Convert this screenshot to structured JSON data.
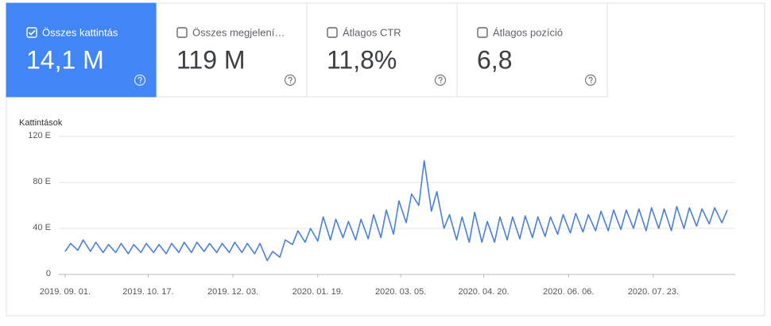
{
  "cards": [
    {
      "label": "Összes kattintás",
      "value": "14,1 M",
      "selected": true
    },
    {
      "label": "Összes megjelení…",
      "value": "119 M",
      "selected": false
    },
    {
      "label": "Átlagos CTR",
      "value": "11,8%",
      "selected": false
    },
    {
      "label": "Átlagos pozíció",
      "value": "6,8",
      "selected": false
    }
  ],
  "chart_data": {
    "type": "line",
    "y_label": "Kattintások",
    "color": "#4a7fe0",
    "x": [
      "2019-09-01",
      "2019-09-04",
      "2019-09-08",
      "2019-09-11",
      "2019-09-15",
      "2019-09-18",
      "2019-09-22",
      "2019-09-25",
      "2019-09-29",
      "2019-10-02",
      "2019-10-06",
      "2019-10-09",
      "2019-10-13",
      "2019-10-16",
      "2019-10-20",
      "2019-10-23",
      "2019-10-27",
      "2019-10-30",
      "2019-11-03",
      "2019-11-06",
      "2019-11-10",
      "2019-11-13",
      "2019-11-17",
      "2019-11-20",
      "2019-11-24",
      "2019-11-27",
      "2019-12-01",
      "2019-12-04",
      "2019-12-08",
      "2019-12-11",
      "2019-12-15",
      "2019-12-18",
      "2019-12-22",
      "2019-12-25",
      "2019-12-29",
      "2020-01-01",
      "2020-01-05",
      "2020-01-08",
      "2020-01-12",
      "2020-01-15",
      "2020-01-19",
      "2020-01-22",
      "2020-01-26",
      "2020-01-29",
      "2020-02-02",
      "2020-02-05",
      "2020-02-09",
      "2020-02-12",
      "2020-02-16",
      "2020-02-19",
      "2020-02-23",
      "2020-02-26",
      "2020-03-01",
      "2020-03-04",
      "2020-03-08",
      "2020-03-11",
      "2020-03-15",
      "2020-03-18",
      "2020-03-22",
      "2020-03-25",
      "2020-03-29",
      "2020-04-01",
      "2020-04-05",
      "2020-04-08",
      "2020-04-12",
      "2020-04-15",
      "2020-04-19",
      "2020-04-22",
      "2020-04-26",
      "2020-04-29",
      "2020-05-03",
      "2020-05-06",
      "2020-05-10",
      "2020-05-13",
      "2020-05-17",
      "2020-05-20",
      "2020-05-24",
      "2020-05-27",
      "2020-05-31",
      "2020-06-03",
      "2020-06-07",
      "2020-06-10",
      "2020-06-14",
      "2020-06-17",
      "2020-06-21",
      "2020-06-24",
      "2020-06-28",
      "2020-07-01",
      "2020-07-05",
      "2020-07-08",
      "2020-07-12",
      "2020-07-15",
      "2020-07-19",
      "2020-07-22",
      "2020-07-26",
      "2020-07-29",
      "2020-08-02",
      "2020-08-05",
      "2020-08-09",
      "2020-08-12",
      "2020-08-16",
      "2020-08-19",
      "2020-08-23",
      "2020-08-26",
      "2020-08-30",
      "2020-09-02"
    ],
    "values": [
      20,
      27,
      21,
      30,
      20,
      28,
      19,
      26,
      19,
      27,
      18,
      26,
      19,
      27,
      19,
      26,
      18,
      27,
      19,
      28,
      19,
      28,
      20,
      27,
      19,
      27,
      19,
      28,
      19,
      27,
      18,
      27,
      12,
      20,
      15,
      30,
      26,
      38,
      28,
      40,
      29,
      50,
      30,
      48,
      32,
      46,
      30,
      48,
      31,
      52,
      32,
      56,
      35,
      64,
      45,
      70,
      60,
      99,
      55,
      72,
      40,
      52,
      30,
      50,
      28,
      54,
      28,
      46,
      28,
      50,
      30,
      50,
      31,
      51,
      32,
      50,
      33,
      50,
      35,
      52,
      36,
      53,
      37,
      52,
      38,
      55,
      38,
      56,
      39,
      56,
      40,
      57,
      38,
      58,
      40,
      57,
      38,
      59,
      40,
      58,
      42,
      57,
      44,
      58,
      45,
      56
    ],
    "xlim": [
      "2019-09-01",
      "2020-09-02"
    ],
    "xticks": [
      {
        "value": "2019-09-01",
        "label": "2019. 09. 01."
      },
      {
        "value": "2019-10-17",
        "label": "2019. 10. 17."
      },
      {
        "value": "2019-12-03",
        "label": "2019. 12. 03."
      },
      {
        "value": "2020-01-19",
        "label": "2020. 01. 19."
      },
      {
        "value": "2020-03-05",
        "label": "2020. 03. 05."
      },
      {
        "value": "2020-04-20",
        "label": "2020. 04. 20."
      },
      {
        "value": "2020-06-06",
        "label": "2020. 06. 06."
      },
      {
        "value": "2020-07-23",
        "label": "2020. 07. 23."
      }
    ],
    "ylim": [
      0,
      120
    ],
    "yticks": [
      0,
      {
        "value": 40,
        "label": "40 E"
      },
      {
        "value": 80,
        "label": "80 E"
      },
      {
        "value": 120,
        "label": "120 E"
      }
    ],
    "grid": true
  }
}
